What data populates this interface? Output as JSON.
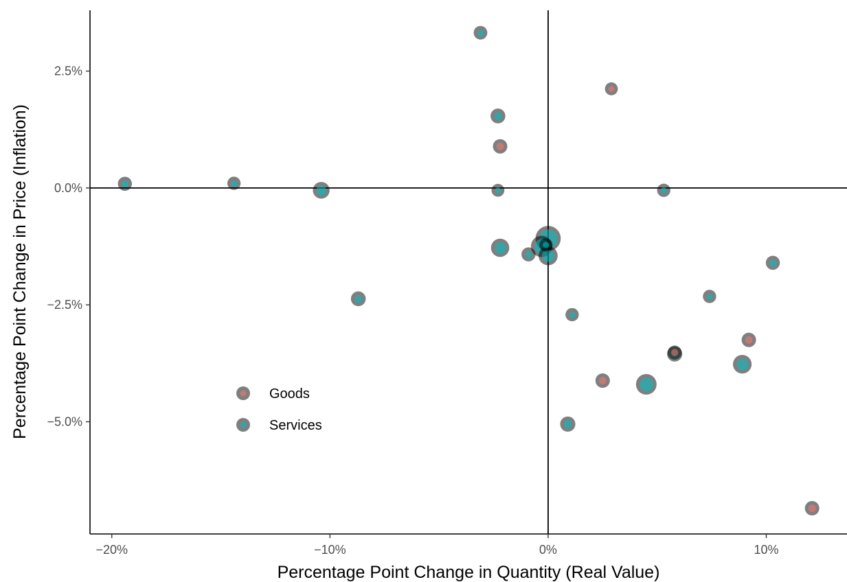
{
  "chart_data": {
    "type": "scatter",
    "xlabel": "Percentage Point Change in Quantity (Real Value)",
    "ylabel": "Percentage Point Change in Price (Inflation)",
    "xlim": [
      -21.0,
      13.7
    ],
    "ylim": [
      -7.4,
      3.8
    ],
    "x_ticks": [
      {
        "value": -20,
        "label": "−20%"
      },
      {
        "value": -10,
        "label": "−10%"
      },
      {
        "value": 0,
        "label": "0%"
      },
      {
        "value": 10,
        "label": "10%"
      }
    ],
    "y_ticks": [
      {
        "value": 2.5,
        "label": "2.5%"
      },
      {
        "value": 0,
        "label": "0.0%"
      },
      {
        "value": -2.5,
        "label": "−2.5%"
      },
      {
        "value": -5,
        "label": "−5.0%"
      }
    ],
    "reference_lines": {
      "x": 0,
      "y": 0
    },
    "grid": false,
    "legend_position": "inside-bottom-left",
    "series": [
      {
        "name": "Goods",
        "color": "#F8766D",
        "points": [
          {
            "x": 2.9,
            "y": 2.12,
            "size": 1
          },
          {
            "x": -2.2,
            "y": 0.89,
            "size": 1.4
          },
          {
            "x": 9.2,
            "y": -3.25,
            "size": 1.4
          },
          {
            "x": 5.8,
            "y": -3.52,
            "size": 1.3
          },
          {
            "x": 2.5,
            "y": -4.12,
            "size": 1.4
          },
          {
            "x": 12.1,
            "y": -6.85,
            "size": 1.4
          }
        ]
      },
      {
        "name": "Services",
        "color": "#00BFC4",
        "points": [
          {
            "x": -3.1,
            "y": 3.32,
            "size": 1.2
          },
          {
            "x": -2.3,
            "y": 1.54,
            "size": 1.5
          },
          {
            "x": -19.4,
            "y": 0.09,
            "size": 1.3
          },
          {
            "x": -14.4,
            "y": 0.1,
            "size": 1.1
          },
          {
            "x": -10.4,
            "y": -0.05,
            "size": 2.0
          },
          {
            "x": -2.3,
            "y": -0.05,
            "size": 1.0
          },
          {
            "x": 5.3,
            "y": -0.05,
            "size": 1.1
          },
          {
            "x": 0.0,
            "y": -1.08,
            "size": 4.2
          },
          {
            "x": -0.3,
            "y": -1.25,
            "size": 3.2
          },
          {
            "x": -2.2,
            "y": -1.28,
            "size": 2.4
          },
          {
            "x": -0.9,
            "y": -1.42,
            "size": 1.3
          },
          {
            "x": 0.0,
            "y": -1.45,
            "size": 2.6
          },
          {
            "x": -0.1,
            "y": -1.22,
            "size": 1.1
          },
          {
            "x": 10.3,
            "y": -1.6,
            "size": 1.3
          },
          {
            "x": 7.4,
            "y": -2.32,
            "size": 1.1
          },
          {
            "x": -8.7,
            "y": -2.37,
            "size": 1.5
          },
          {
            "x": 1.1,
            "y": -2.71,
            "size": 1.1
          },
          {
            "x": 5.8,
            "y": -3.55,
            "size": 1.6
          },
          {
            "x": 8.9,
            "y": -3.77,
            "size": 2.5
          },
          {
            "x": 4.5,
            "y": -4.2,
            "size": 3.0
          },
          {
            "x": 0.9,
            "y": -5.05,
            "size": 1.6
          }
        ]
      }
    ]
  }
}
